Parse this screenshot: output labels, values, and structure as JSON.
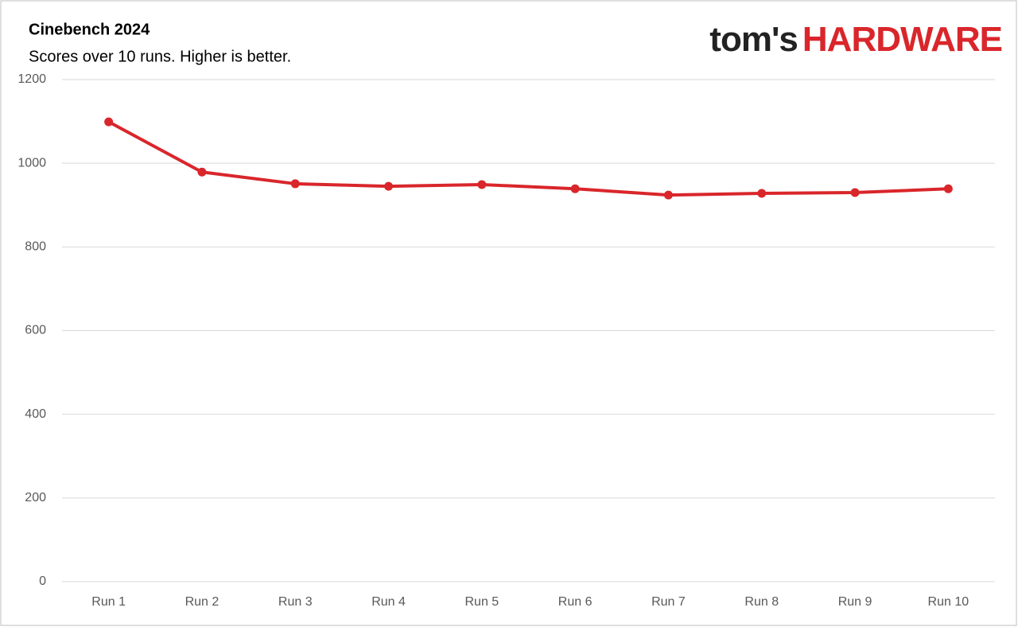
{
  "chart_data": {
    "type": "line",
    "title": "Cinebench 2024",
    "subtitle": "Scores over 10 runs. Higher is better.",
    "logo": [
      "tom's",
      "HARDWARE"
    ],
    "categories": [
      "Run 1",
      "Run 2",
      "Run 3",
      "Run 4",
      "Run 5",
      "Run 6",
      "Run 7",
      "Run 8",
      "Run 9",
      "Run 10"
    ],
    "values": [
      1099,
      979,
      951,
      945,
      949,
      939,
      924,
      928,
      930,
      939
    ],
    "color": "#d9262b",
    "ylim": [
      0,
      1200
    ],
    "yticks": [
      0,
      200,
      400,
      600,
      800,
      1000,
      1200
    ],
    "grid": true
  }
}
